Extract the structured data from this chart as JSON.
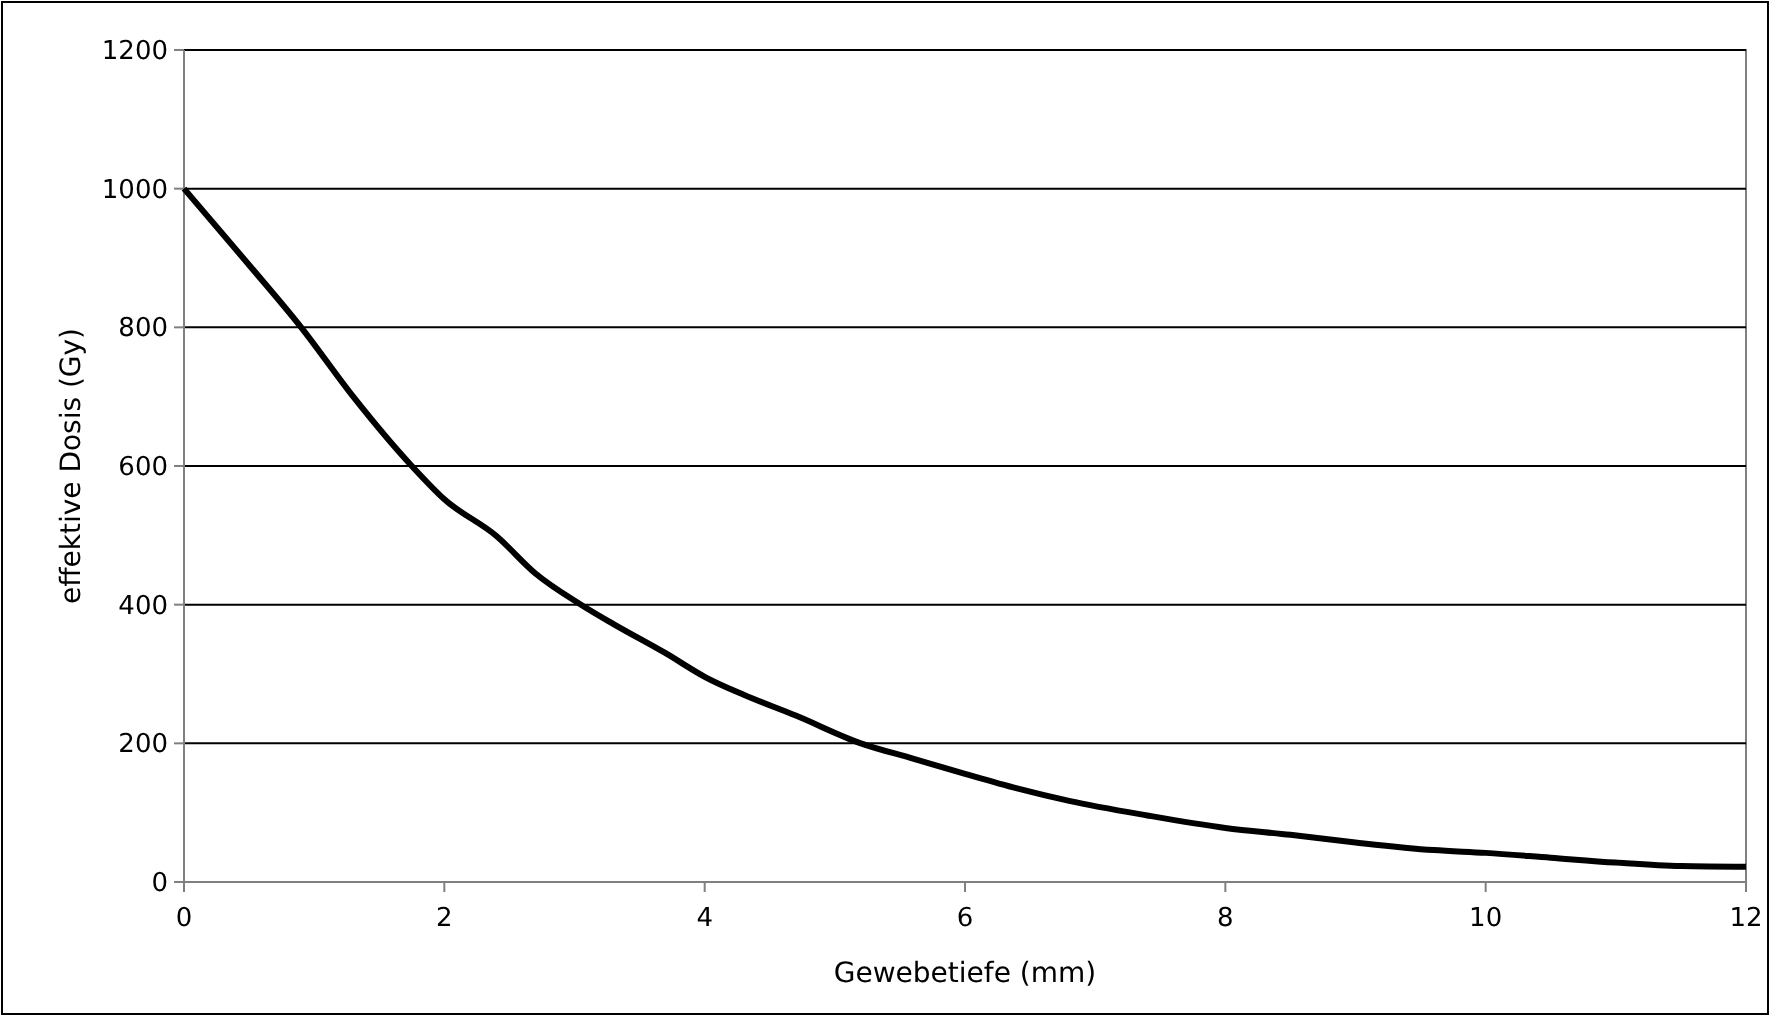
{
  "chart_data": {
    "type": "line",
    "xlabel": "Gewebetiefe (mm)",
    "ylabel": "effektive Dosis (Gy)",
    "series": [
      {
        "color": "#000000",
        "x": [
          0,
          0.5,
          0.9,
          1.3,
          1.75,
          2,
          2.4,
          2.7,
          3.05,
          3.3,
          3.7,
          4,
          4.3,
          4.7,
          5.2,
          5.6,
          6,
          6.4,
          6.8,
          7.4,
          8,
          8.5,
          9,
          9.6,
          10,
          10.5,
          11,
          11.5,
          12
        ],
        "values": [
          1000,
          890,
          800,
          700,
          600,
          552,
          499,
          445,
          400,
          372,
          330,
          296,
          270,
          240,
          200,
          178,
          156,
          135,
          117,
          96,
          78,
          68,
          57,
          46,
          42,
          35,
          28,
          23,
          22
        ]
      }
    ],
    "xlim": [
      0,
      12
    ],
    "xticks": [
      0,
      2,
      4,
      6,
      8,
      10,
      12
    ],
    "ylim": [
      0,
      1200
    ],
    "yticks": [
      0,
      200,
      400,
      600,
      800,
      1000,
      1200
    ],
    "grid": "y",
    "marker": "none",
    "line_style": "solid"
  }
}
